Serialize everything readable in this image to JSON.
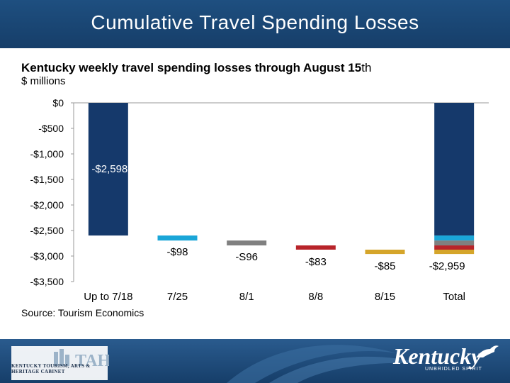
{
  "header": {
    "title": "Cumulative Travel Spending Losses"
  },
  "chart_data": {
    "type": "bar",
    "subtype": "waterfall",
    "title": "Kentucky weekly  travel spending  losses through August 15",
    "title_suffix": "th",
    "ylabel": "$ millions",
    "source": "Source: Tourism Economics",
    "ylim": [
      -3500,
      0
    ],
    "yticks": [
      0,
      -500,
      -1000,
      -1500,
      -2000,
      -2500,
      -3000,
      -3500
    ],
    "ytick_labels": [
      "$0",
      "-$500",
      "-$1,000",
      "-$1,500",
      "-$2,000",
      "-$2,500",
      "-$3,000",
      "-$3,500"
    ],
    "categories": [
      "Up to 7/18",
      "7/25",
      "8/1",
      "8/8",
      "8/15",
      "Total"
    ],
    "values": [
      -2598,
      -98,
      -96,
      -83,
      -85,
      -2959
    ],
    "data_labels": [
      "-$2,598",
      "-$98",
      "-S96",
      "-$83",
      "-$85",
      "-$2,959"
    ],
    "colors": [
      "#15396b",
      "#1aa6d8",
      "#808080",
      "#b8242a",
      "#d5a52a",
      "#15396b"
    ],
    "total_segment_colors": [
      "#15396b",
      "#1aa6d8",
      "#808080",
      "#b8242a",
      "#d5a52a"
    ]
  },
  "footer": {
    "left_logo_text": "KENTUCKY TOURISM, ARTS & HERITAGE CABINET",
    "left_logo_letters": "TAH",
    "right_logo": "Kentucky",
    "right_tagline": "UNBRIDLED SPIRIT"
  },
  "colors": {
    "header_bg": "#1b4776",
    "accent": "#15396b"
  }
}
